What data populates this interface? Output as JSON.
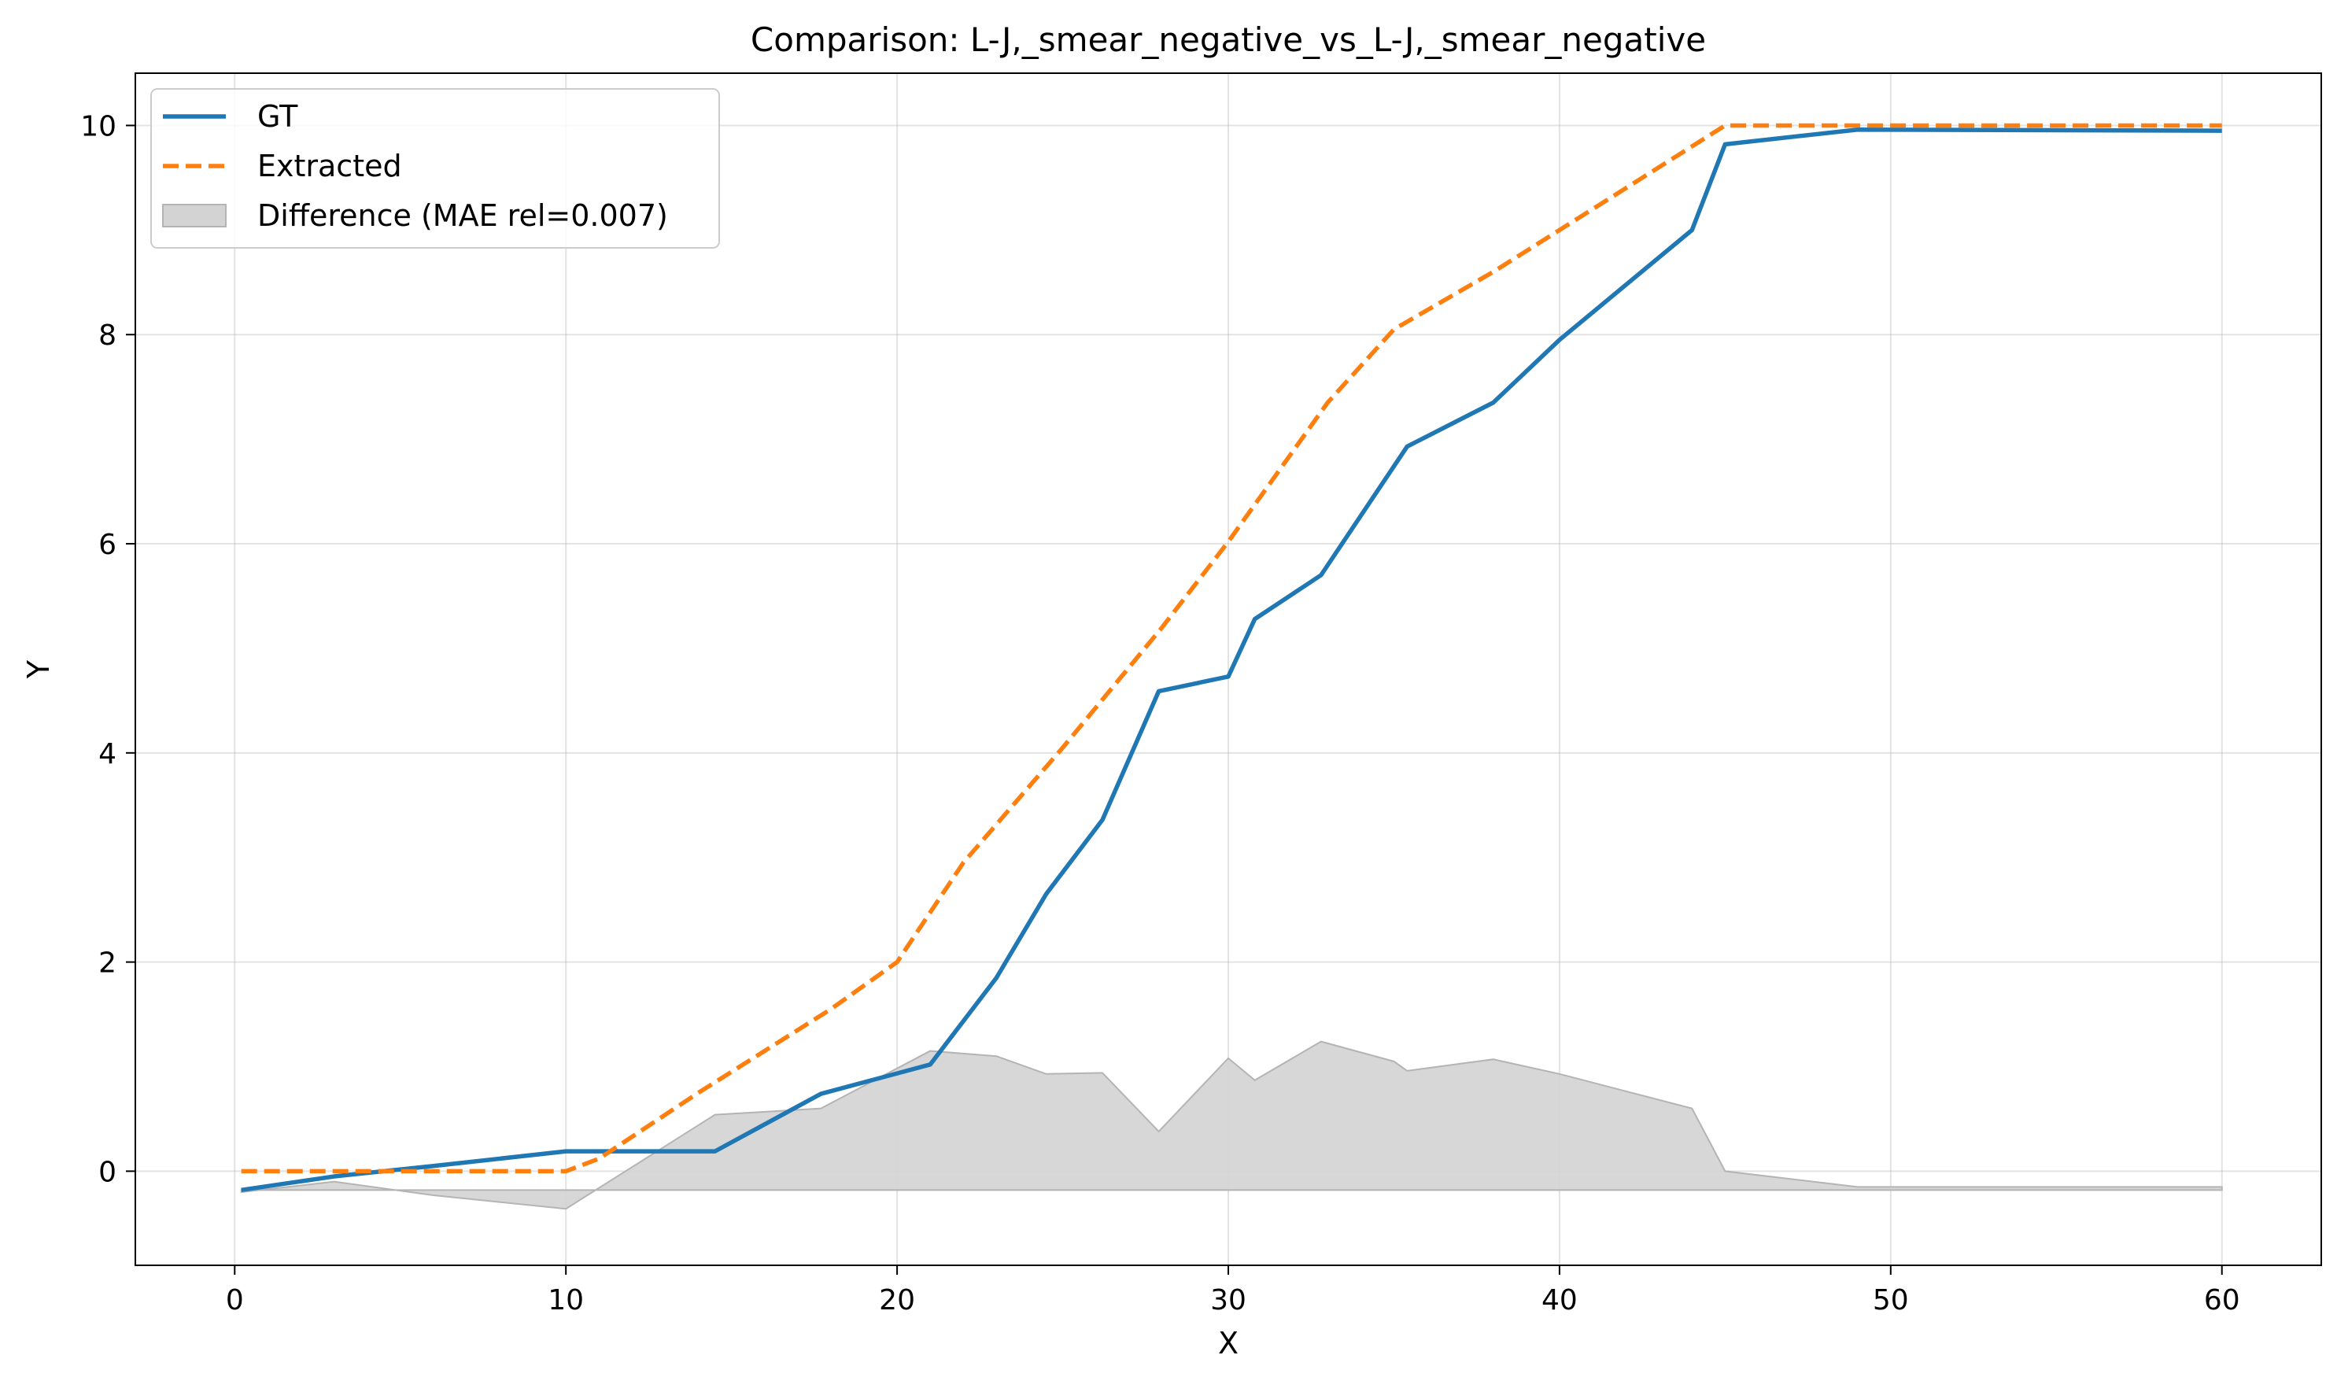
{
  "chart_data": {
    "type": "line",
    "title": "Comparison: L-J,_smear_negative_vs_L-J,_smear_negative",
    "xlabel": "X",
    "ylabel": "Y",
    "xlim": [
      -3,
      63
    ],
    "ylim": [
      -0.9,
      10.5
    ],
    "xticks": [
      0,
      10,
      20,
      30,
      40,
      50,
      60
    ],
    "yticks": [
      0,
      2,
      4,
      6,
      8,
      10
    ],
    "grid": true,
    "legend_position": "top-left",
    "series": [
      {
        "name": "GT",
        "color": "#1f77b4",
        "style": "solid",
        "x": [
          0.2,
          3,
          6,
          10,
          14.5,
          17.7,
          21,
          23,
          24.5,
          26.2,
          27.9,
          30,
          30.8,
          32.8,
          35.4,
          38,
          40,
          44,
          45,
          49,
          60
        ],
        "y": [
          -0.18,
          -0.05,
          0.05,
          0.19,
          0.19,
          0.74,
          1.02,
          1.85,
          2.65,
          3.36,
          4.59,
          4.73,
          5.28,
          5.7,
          6.93,
          7.35,
          7.95,
          9.0,
          9.82,
          9.96,
          9.95
        ]
      },
      {
        "name": "Extracted",
        "color": "#ff7f0e",
        "style": "dashed",
        "x": [
          0.2,
          4,
          8,
          10,
          11,
          14,
          18,
          20,
          22,
          25,
          28,
          30,
          33,
          35,
          38,
          40,
          45,
          50,
          60
        ],
        "y": [
          0.0,
          0.0,
          0.0,
          0.0,
          0.12,
          0.75,
          1.55,
          2.0,
          2.95,
          4.05,
          5.2,
          6.02,
          7.35,
          8.05,
          8.6,
          9.0,
          10.0,
          10.0,
          10.0
        ]
      },
      {
        "name": "Difference (MAE rel=0.007)",
        "type": "area",
        "color": "#d3d3d3",
        "baseline": -0.18,
        "x": [
          0.2,
          3,
          6,
          10,
          14.5,
          17.7,
          21,
          23,
          24.5,
          26.2,
          27.9,
          30,
          30.8,
          32.8,
          35,
          35.4,
          38,
          40,
          44,
          45,
          49,
          60
        ],
        "y": [
          -0.2,
          -0.1,
          -0.23,
          -0.36,
          0.54,
          0.6,
          1.15,
          1.1,
          0.93,
          0.94,
          0.38,
          1.08,
          0.87,
          1.24,
          1.05,
          0.96,
          1.07,
          0.93,
          0.6,
          0.0,
          -0.15,
          -0.15
        ]
      }
    ]
  }
}
